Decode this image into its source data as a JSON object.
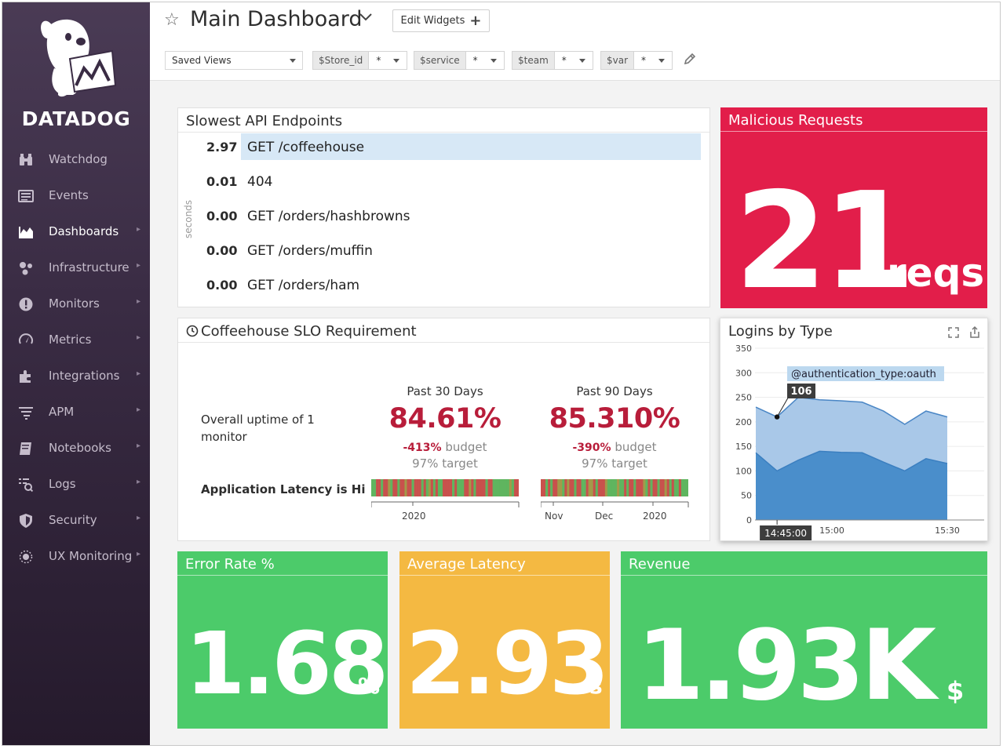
{
  "app": {
    "logo_text": "DATADOG"
  },
  "sidebar": {
    "items": [
      {
        "label": "Watchdog",
        "icon": "binoculars-icon",
        "arrow": false
      },
      {
        "label": "Events",
        "icon": "events-list-icon",
        "arrow": false
      },
      {
        "label": "Dashboards",
        "icon": "dashboard-chart-icon",
        "arrow": true,
        "active": true
      },
      {
        "label": "Infrastructure",
        "icon": "infrastructure-nodes-icon",
        "arrow": true
      },
      {
        "label": "Monitors",
        "icon": "alert-circle-icon",
        "arrow": true
      },
      {
        "label": "Metrics",
        "icon": "gauge-icon",
        "arrow": true
      },
      {
        "label": "Integrations",
        "icon": "puzzle-piece-icon",
        "arrow": true
      },
      {
        "label": "APM",
        "icon": "apm-lines-icon",
        "arrow": true
      },
      {
        "label": "Notebooks",
        "icon": "notebook-icon",
        "arrow": true
      },
      {
        "label": "Logs",
        "icon": "logs-icon",
        "arrow": true
      },
      {
        "label": "Security",
        "icon": "shield-icon",
        "arrow": true
      },
      {
        "label": "UX Monitoring",
        "icon": "ux-monitoring-icon",
        "arrow": true
      }
    ]
  },
  "header": {
    "title": "Main Dashboard",
    "edit_widgets": "Edit Widgets",
    "saved_views": "Saved Views",
    "variables": [
      {
        "name": "$Store_id",
        "value": "*"
      },
      {
        "name": "$service",
        "value": "*"
      },
      {
        "name": "$team",
        "value": "*"
      },
      {
        "name": "$var",
        "value": "*"
      }
    ]
  },
  "endpoints": {
    "title": "Slowest API Endpoints",
    "axis_label": "seconds",
    "rows": [
      {
        "value": "2.97",
        "name": "GET /coffeehouse",
        "fraction": 1.0
      },
      {
        "value": "0.01",
        "name": "404",
        "fraction": 0.0
      },
      {
        "value": "0.00",
        "name": "GET /orders/hashbrowns",
        "fraction": 0.0
      },
      {
        "value": "0.00",
        "name": "GET /orders/muffin",
        "fraction": 0.0
      },
      {
        "value": "0.00",
        "name": "GET /orders/ham",
        "fraction": 0.0
      }
    ]
  },
  "malicious": {
    "title": "Malicious Requests",
    "value": "21",
    "unit": "reqs",
    "color": "#e21e4a"
  },
  "slo": {
    "title": "Coffeehouse SLO Requirement",
    "row_label": "Overall uptime of 1 monitor",
    "monitor_label": "Application Latency is Hi",
    "periods": [
      {
        "head": "Past 30 Days",
        "pct": "84.61%",
        "budget_val": "-413%",
        "budget_text": "budget",
        "target": "97% target",
        "ticks": [
          "2020"
        ]
      },
      {
        "head": "Past 90 Days",
        "pct": "85.310%",
        "budget_val": "-390%",
        "budget_text": "budget",
        "target": "97% target",
        "ticks": [
          "Nov",
          "Dec",
          "2020"
        ]
      }
    ]
  },
  "logins": {
    "title": "Logins by Type",
    "tooltip_label": "@authentication_type:oauth",
    "tooltip_value": "106",
    "x_cursor_label": "14:45:00",
    "x_ticks": [
      "15:00",
      "15:30"
    ]
  },
  "error_rate": {
    "title": "Error Rate %",
    "value": "1.68",
    "unit": "%",
    "color": "#4ccb6a"
  },
  "avg_latency": {
    "title": "Average Latency",
    "value": "2.93",
    "unit": "s",
    "color": "#f4b942"
  },
  "revenue": {
    "title": "Revenue",
    "value": "1.93K",
    "unit": "$",
    "color": "#4ccb6a"
  },
  "chart_data": {
    "type": "area",
    "title": "Logins by Type",
    "ylim": [
      0,
      350
    ],
    "y_ticks": [
      0,
      50,
      100,
      150,
      200,
      250,
      300,
      350
    ],
    "x_tick_labels": [
      "15:00",
      "15:30"
    ],
    "grid": true,
    "series": [
      {
        "name": "@authentication_type:oauth",
        "values": [
          230,
          210,
          250,
          245,
          243,
          240,
          222,
          195,
          222,
          210
        ],
        "color": "#a9c8e8"
      },
      {
        "values": [
          137,
          100,
          122,
          140,
          138,
          137,
          118,
          100,
          125,
          115
        ],
        "color": "#4a8ecb"
      }
    ],
    "highlight": {
      "value": 106
    }
  }
}
